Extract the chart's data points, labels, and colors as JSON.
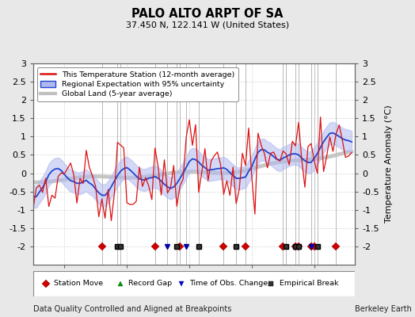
{
  "title": "PALO ALTO ARPT OF SA",
  "subtitle": "37.450 N, 122.141 W (United States)",
  "ylabel": "Temperature Anomaly (°C)",
  "xlabel_note": "Data Quality Controlled and Aligned at Breakpoints",
  "credit": "Berkeley Earth",
  "ylim": [
    -2.5,
    3.0
  ],
  "xlim": [
    1910,
    2013
  ],
  "xticks": [
    1920,
    1940,
    1960,
    1980,
    2000
  ],
  "yticks": [
    -2.0,
    -1.5,
    -1.0,
    -0.5,
    0.0,
    0.5,
    1.0,
    1.5,
    2.0,
    2.5,
    3.0
  ],
  "bg_color": "#e8e8e8",
  "plot_bg_color": "#ffffff",
  "marker_events": {
    "station_move": [
      1932,
      1949,
      1957,
      1971,
      1978,
      1990,
      1994,
      1995,
      1999,
      2000,
      2007
    ],
    "record_gap": [],
    "time_obs_change": [
      1953,
      1959,
      1999
    ],
    "empirical_break": [
      1937,
      1938,
      1956,
      1963,
      1975,
      1991,
      1994,
      1995,
      2001
    ]
  },
  "marker_y": -2.0,
  "vline_color": "#888888",
  "grid_color": "#cccccc"
}
